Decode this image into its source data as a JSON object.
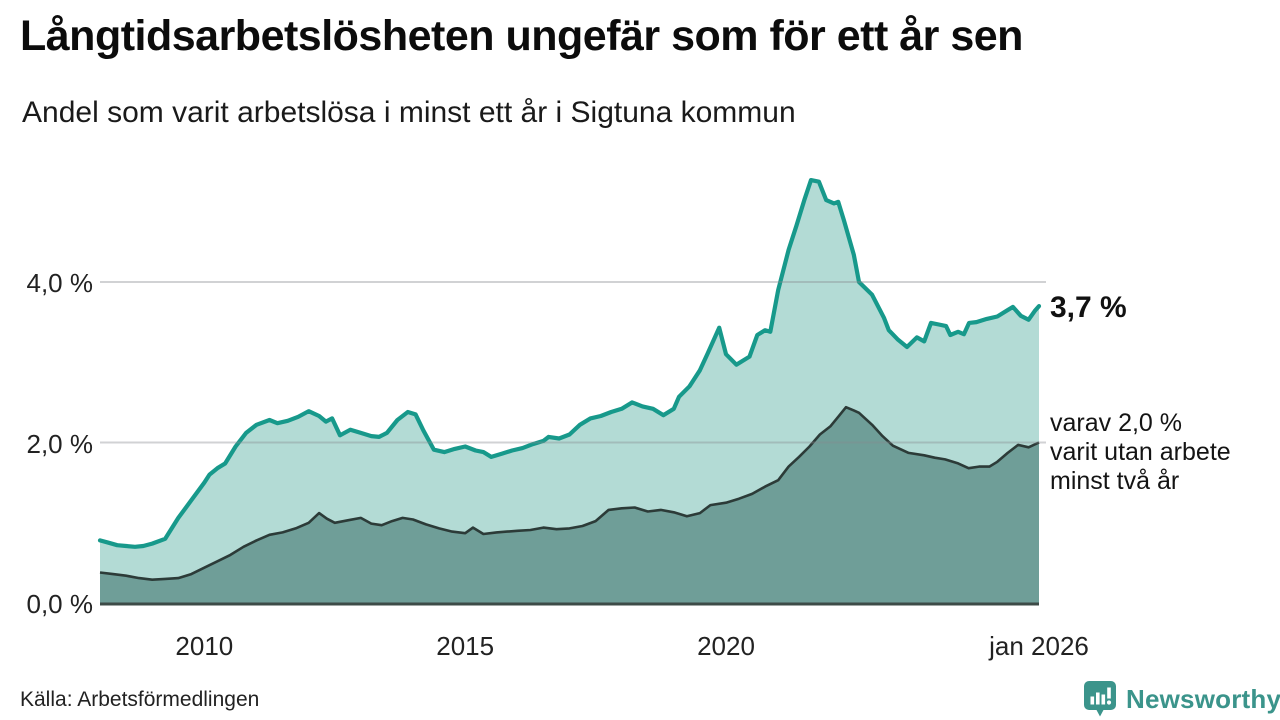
{
  "header": {
    "title": "Långtidsarbetslösheten ungefär som för ett år sen",
    "subtitle": "Andel som varit arbetslösa i minst ett år i Sigtuna kommun"
  },
  "chart_data": {
    "type": "area",
    "title": "Långtidsarbetslösheten ungefär som för ett år sen",
    "subtitle": "Andel som varit arbetslösa i minst ett år i Sigtuna kommun",
    "x_unit": "year (decimal, monthly observations)",
    "y_unit": "percent",
    "xlim": [
      2008,
      2026
    ],
    "ylim": [
      0,
      5.5
    ],
    "grid": "horizontal",
    "legend_position": "right-annotations",
    "yticks": [
      {
        "label": "0,0 %",
        "value": 0
      },
      {
        "label": "2,0 %",
        "value": 2
      },
      {
        "label": "4,0 %",
        "value": 4
      }
    ],
    "xticks": [
      {
        "label": "2010",
        "year": 2010
      },
      {
        "label": "2015",
        "year": 2015
      },
      {
        "label": "2020",
        "year": 2020
      },
      {
        "label": "jan 2026",
        "year": 2026
      }
    ],
    "series": [
      {
        "name": "Andel arbetslösa minst ett år",
        "latest_label": "3,7 %",
        "latest_value": 3.7,
        "line_color": "#17998b",
        "fill_color": "#b3dbd5",
        "points": [
          [
            2008.0,
            0.78
          ],
          [
            2008.17,
            0.75
          ],
          [
            2008.33,
            0.72
          ],
          [
            2008.5,
            0.71
          ],
          [
            2008.67,
            0.7
          ],
          [
            2008.83,
            0.71
          ],
          [
            2009.0,
            0.74
          ],
          [
            2009.25,
            0.8
          ],
          [
            2009.5,
            1.06
          ],
          [
            2009.75,
            1.28
          ],
          [
            2010.0,
            1.5
          ],
          [
            2010.1,
            1.6
          ],
          [
            2010.25,
            1.68
          ],
          [
            2010.4,
            1.74
          ],
          [
            2010.6,
            1.95
          ],
          [
            2010.8,
            2.12
          ],
          [
            2011.0,
            2.22
          ],
          [
            2011.25,
            2.28
          ],
          [
            2011.4,
            2.24
          ],
          [
            2011.6,
            2.27
          ],
          [
            2011.8,
            2.32
          ],
          [
            2012.0,
            2.39
          ],
          [
            2012.2,
            2.33
          ],
          [
            2012.33,
            2.26
          ],
          [
            2012.45,
            2.3
          ],
          [
            2012.6,
            2.09
          ],
          [
            2012.8,
            2.16
          ],
          [
            2013.0,
            2.12
          ],
          [
            2013.2,
            2.08
          ],
          [
            2013.35,
            2.07
          ],
          [
            2013.5,
            2.12
          ],
          [
            2013.7,
            2.28
          ],
          [
            2013.9,
            2.38
          ],
          [
            2014.05,
            2.35
          ],
          [
            2014.2,
            2.15
          ],
          [
            2014.4,
            1.91
          ],
          [
            2014.6,
            1.88
          ],
          [
            2014.8,
            1.92
          ],
          [
            2015.0,
            1.95
          ],
          [
            2015.2,
            1.9
          ],
          [
            2015.35,
            1.88
          ],
          [
            2015.5,
            1.82
          ],
          [
            2015.7,
            1.86
          ],
          [
            2015.9,
            1.9
          ],
          [
            2016.1,
            1.93
          ],
          [
            2016.3,
            1.98
          ],
          [
            2016.5,
            2.02
          ],
          [
            2016.6,
            2.07
          ],
          [
            2016.8,
            2.05
          ],
          [
            2017.0,
            2.1
          ],
          [
            2017.2,
            2.22
          ],
          [
            2017.4,
            2.3
          ],
          [
            2017.6,
            2.33
          ],
          [
            2017.8,
            2.38
          ],
          [
            2018.0,
            2.42
          ],
          [
            2018.2,
            2.5
          ],
          [
            2018.4,
            2.45
          ],
          [
            2018.6,
            2.42
          ],
          [
            2018.8,
            2.34
          ],
          [
            2019.0,
            2.42
          ],
          [
            2019.1,
            2.57
          ],
          [
            2019.3,
            2.7
          ],
          [
            2019.5,
            2.9
          ],
          [
            2019.65,
            3.11
          ],
          [
            2019.87,
            3.43
          ],
          [
            2020.0,
            3.1
          ],
          [
            2020.2,
            2.97
          ],
          [
            2020.45,
            3.07
          ],
          [
            2020.6,
            3.34
          ],
          [
            2020.75,
            3.4
          ],
          [
            2020.85,
            3.38
          ],
          [
            2021.0,
            3.9
          ],
          [
            2021.2,
            4.4
          ],
          [
            2021.35,
            4.7
          ],
          [
            2021.5,
            5.02
          ],
          [
            2021.63,
            5.27
          ],
          [
            2021.78,
            5.25
          ],
          [
            2021.92,
            5.02
          ],
          [
            2022.07,
            4.98
          ],
          [
            2022.15,
            5.0
          ],
          [
            2022.26,
            4.77
          ],
          [
            2022.45,
            4.34
          ],
          [
            2022.55,
            4.0
          ],
          [
            2022.8,
            3.84
          ],
          [
            2023.03,
            3.55
          ],
          [
            2023.12,
            3.4
          ],
          [
            2023.3,
            3.28
          ],
          [
            2023.47,
            3.19
          ],
          [
            2023.66,
            3.31
          ],
          [
            2023.8,
            3.26
          ],
          [
            2023.93,
            3.49
          ],
          [
            2024.08,
            3.47
          ],
          [
            2024.22,
            3.45
          ],
          [
            2024.3,
            3.34
          ],
          [
            2024.45,
            3.38
          ],
          [
            2024.56,
            3.35
          ],
          [
            2024.66,
            3.49
          ],
          [
            2024.8,
            3.5
          ],
          [
            2025.0,
            3.54
          ],
          [
            2025.2,
            3.57
          ],
          [
            2025.4,
            3.65
          ],
          [
            2025.5,
            3.69
          ],
          [
            2025.65,
            3.58
          ],
          [
            2025.8,
            3.53
          ],
          [
            2025.92,
            3.64
          ],
          [
            2026.0,
            3.7
          ]
        ]
      },
      {
        "name": "varav utan arbete minst två år",
        "latest_label": "2,0 %",
        "latest_value": 2.0,
        "line_color": "#2c3b38",
        "fill_color": "#6f9e98",
        "points": [
          [
            2008.0,
            0.38
          ],
          [
            2008.25,
            0.36
          ],
          [
            2008.5,
            0.34
          ],
          [
            2008.75,
            0.31
          ],
          [
            2009.0,
            0.29
          ],
          [
            2009.25,
            0.3
          ],
          [
            2009.5,
            0.31
          ],
          [
            2009.75,
            0.36
          ],
          [
            2010.0,
            0.44
          ],
          [
            2010.25,
            0.52
          ],
          [
            2010.5,
            0.6
          ],
          [
            2010.75,
            0.7
          ],
          [
            2011.0,
            0.78
          ],
          [
            2011.25,
            0.85
          ],
          [
            2011.5,
            0.88
          ],
          [
            2011.75,
            0.93
          ],
          [
            2012.0,
            1.0
          ],
          [
            2012.2,
            1.12
          ],
          [
            2012.35,
            1.05
          ],
          [
            2012.5,
            1.0
          ],
          [
            2012.75,
            1.03
          ],
          [
            2013.0,
            1.06
          ],
          [
            2013.2,
            0.99
          ],
          [
            2013.4,
            0.97
          ],
          [
            2013.6,
            1.02
          ],
          [
            2013.8,
            1.06
          ],
          [
            2014.0,
            1.04
          ],
          [
            2014.25,
            0.98
          ],
          [
            2014.5,
            0.93
          ],
          [
            2014.75,
            0.89
          ],
          [
            2015.0,
            0.87
          ],
          [
            2015.15,
            0.94
          ],
          [
            2015.35,
            0.86
          ],
          [
            2015.6,
            0.88
          ],
          [
            2015.8,
            0.89
          ],
          [
            2016.0,
            0.9
          ],
          [
            2016.25,
            0.91
          ],
          [
            2016.5,
            0.94
          ],
          [
            2016.75,
            0.92
          ],
          [
            2017.0,
            0.93
          ],
          [
            2017.25,
            0.96
          ],
          [
            2017.5,
            1.02
          ],
          [
            2017.75,
            1.16
          ],
          [
            2018.0,
            1.18
          ],
          [
            2018.25,
            1.19
          ],
          [
            2018.5,
            1.14
          ],
          [
            2018.75,
            1.16
          ],
          [
            2019.0,
            1.13
          ],
          [
            2019.25,
            1.08
          ],
          [
            2019.5,
            1.12
          ],
          [
            2019.7,
            1.22
          ],
          [
            2020.0,
            1.25
          ],
          [
            2020.25,
            1.3
          ],
          [
            2020.5,
            1.36
          ],
          [
            2020.75,
            1.45
          ],
          [
            2021.0,
            1.53
          ],
          [
            2021.2,
            1.7
          ],
          [
            2021.4,
            1.82
          ],
          [
            2021.6,
            1.95
          ],
          [
            2021.8,
            2.1
          ],
          [
            2022.0,
            2.2
          ],
          [
            2022.15,
            2.32
          ],
          [
            2022.3,
            2.44
          ],
          [
            2022.45,
            2.4
          ],
          [
            2022.55,
            2.37
          ],
          [
            2022.8,
            2.22
          ],
          [
            2023.0,
            2.08
          ],
          [
            2023.2,
            1.96
          ],
          [
            2023.5,
            1.87
          ],
          [
            2023.8,
            1.84
          ],
          [
            2024.0,
            1.81
          ],
          [
            2024.2,
            1.79
          ],
          [
            2024.45,
            1.74
          ],
          [
            2024.65,
            1.68
          ],
          [
            2024.85,
            1.7
          ],
          [
            2025.05,
            1.7
          ],
          [
            2025.2,
            1.76
          ],
          [
            2025.4,
            1.87
          ],
          [
            2025.6,
            1.97
          ],
          [
            2025.8,
            1.94
          ],
          [
            2026.0,
            2.0
          ]
        ]
      }
    ]
  },
  "annotations": {
    "latest_total": "3,7 %",
    "secondary_lines": [
      "varav 2,0 %",
      "varit utan arbete",
      "minst två år"
    ]
  },
  "footer": {
    "source": "Källa: Arbetsförmedlingen",
    "brand": "Newsworthy"
  },
  "colors": {
    "total_line": "#17998b",
    "total_fill": "#b3dbd5",
    "two_year_line": "#2c3b38",
    "two_year_fill": "#6f9e98",
    "baseline": "#3d4b47",
    "gridline": "#85888f",
    "brand_teal": "#3b948b",
    "text": "#111111"
  }
}
